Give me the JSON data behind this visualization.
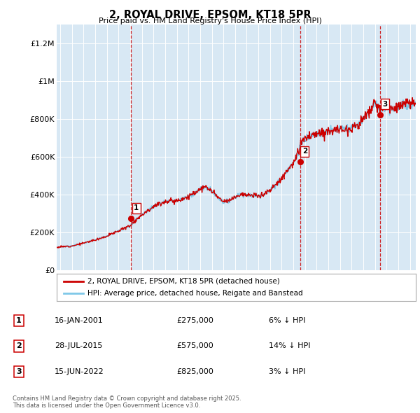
{
  "title": "2, ROYAL DRIVE, EPSOM, KT18 5PR",
  "subtitle": "Price paid vs. HM Land Registry's House Price Index (HPI)",
  "legend_line1": "2, ROYAL DRIVE, EPSOM, KT18 5PR (detached house)",
  "legend_line2": "HPI: Average price, detached house, Reigate and Banstead",
  "footer": "Contains HM Land Registry data © Crown copyright and database right 2025.\nThis data is licensed under the Open Government Licence v3.0.",
  "transactions": [
    {
      "num": 1,
      "date": "16-JAN-2001",
      "price": 275000,
      "note": "6% ↓ HPI",
      "x_year": 2001.04
    },
    {
      "num": 2,
      "date": "28-JUL-2015",
      "price": 575000,
      "note": "14% ↓ HPI",
      "x_year": 2015.57
    },
    {
      "num": 3,
      "date": "15-JUN-2022",
      "price": 825000,
      "note": "3% ↓ HPI",
      "x_year": 2022.46
    }
  ],
  "hpi_color": "#7ec8e8",
  "price_color": "#cc0000",
  "vline_color": "#cc0000",
  "background_color": "#d8e8f4",
  "ylim": [
    0,
    1300000
  ],
  "xlim_start": 1994.7,
  "xlim_end": 2025.5,
  "yticks": [
    0,
    200000,
    400000,
    600000,
    800000,
    1000000,
    1200000
  ],
  "ytick_labels": [
    "£0",
    "£200K",
    "£400K",
    "£600K",
    "£800K",
    "£1M",
    "£1.2M"
  ],
  "xticks": [
    1995,
    1996,
    1997,
    1998,
    1999,
    2000,
    2001,
    2002,
    2003,
    2004,
    2005,
    2006,
    2007,
    2008,
    2009,
    2010,
    2011,
    2012,
    2013,
    2014,
    2015,
    2016,
    2017,
    2018,
    2019,
    2020,
    2021,
    2022,
    2023,
    2024,
    2025
  ]
}
